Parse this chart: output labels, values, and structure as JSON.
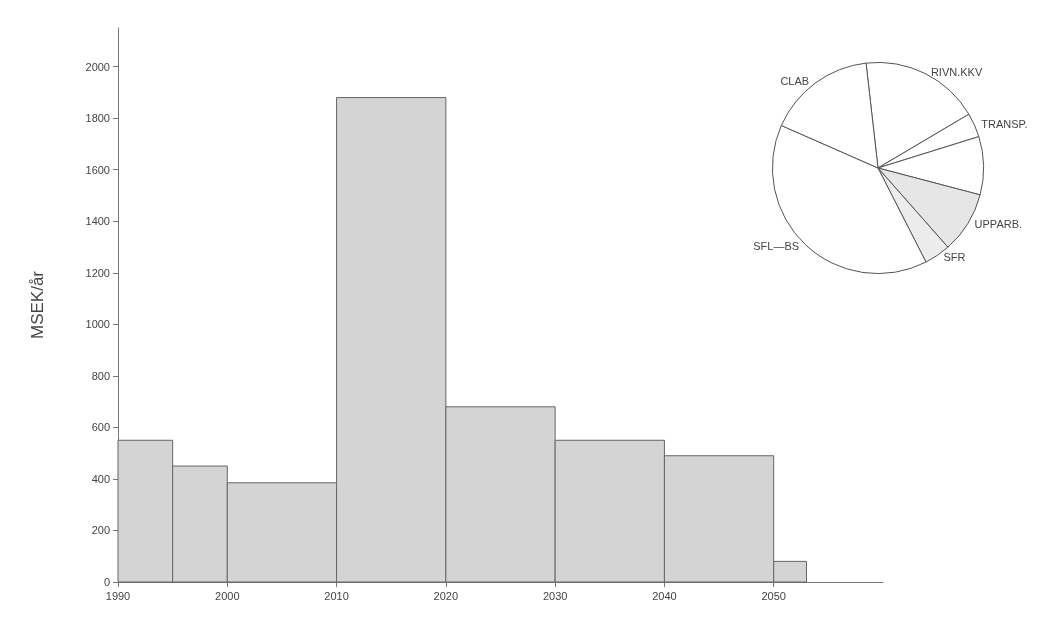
{
  "chart_data": [
    {
      "type": "histogram",
      "ylabel": "MSEK/år",
      "bins": [
        1990,
        1995,
        2000,
        2010,
        2020,
        2030,
        2040,
        2050,
        2053
      ],
      "values": [
        550,
        450,
        385,
        1880,
        680,
        550,
        490,
        80
      ],
      "color": "#d4d4d4",
      "xlim": [
        1990,
        2060
      ],
      "xticks": [
        1990,
        2000,
        2010,
        2020,
        2030,
        2040,
        2050
      ],
      "ylim": [
        0,
        2150
      ],
      "yticks": [
        0,
        200,
        400,
        600,
        800,
        1000,
        1200,
        1400,
        1600,
        1800,
        2000
      ],
      "grid": false
    },
    {
      "type": "pie",
      "categories": [
        "RIVN.KKV",
        "TRANSP.",
        null,
        "UPPARB.",
        "SFR",
        "SFL—BS",
        "CLAB"
      ],
      "values": [
        18.3,
        3.7,
        8.9,
        9.4,
        4.0,
        39.1,
        16.6
      ],
      "colors": [
        "#ffffff",
        "#ffffff",
        "#ffffff",
        "#e6e6e6",
        "#ececec",
        "#ffffff",
        "#ffffff"
      ]
    }
  ]
}
